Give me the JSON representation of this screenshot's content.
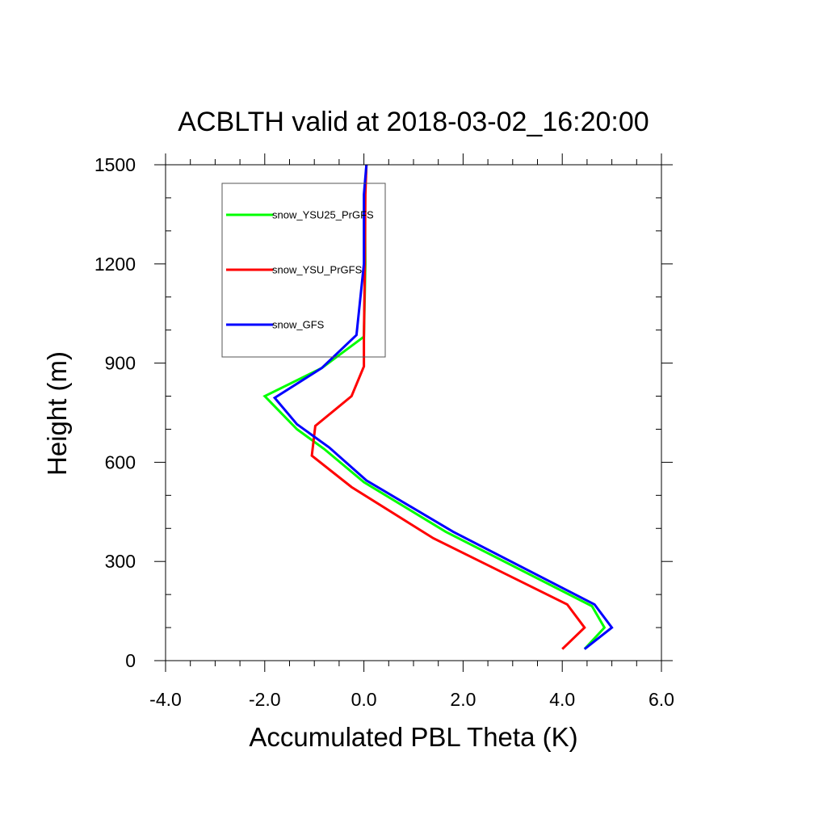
{
  "chart_data": {
    "type": "line",
    "title": "ACBLTH valid at 2018-03-02_16:20:00",
    "xlabel": "Accumulated PBL Theta (K)",
    "ylabel": "Height (m)",
    "xlim": [
      -4.0,
      6.0
    ],
    "ylim": [
      0,
      1500
    ],
    "xticks": [
      -4.0,
      -2.0,
      0.0,
      2.0,
      4.0,
      6.0
    ],
    "xtick_labels": [
      "-4.0",
      "-2.0",
      "0.0",
      "2.0",
      "4.0",
      "6.0"
    ],
    "yticks": [
      0,
      300,
      600,
      900,
      1200,
      1500
    ],
    "ytick_labels": [
      "0",
      "300",
      "600",
      "900",
      "1200",
      "1500"
    ],
    "grid": false,
    "legend_position": "top-left",
    "series": [
      {
        "name": "snow_YSU25_PrGFS",
        "color": "#00ff00",
        "points": [
          [
            4.45,
            35
          ],
          [
            4.85,
            100
          ],
          [
            4.6,
            165
          ],
          [
            1.65,
            390
          ],
          [
            0.0,
            540
          ],
          [
            -0.8,
            640
          ],
          [
            -1.35,
            700
          ],
          [
            -2.0,
            800
          ],
          [
            -0.85,
            885
          ],
          [
            0.0,
            980
          ],
          [
            0.03,
            1200
          ],
          [
            0.02,
            1410
          ],
          [
            0.05,
            1500
          ]
        ]
      },
      {
        "name": "snow_YSU_PrGFS",
        "color": "#ff0000",
        "points": [
          [
            4.0,
            35
          ],
          [
            4.45,
            100
          ],
          [
            4.1,
            170
          ],
          [
            1.4,
            370
          ],
          [
            -0.25,
            525
          ],
          [
            -1.05,
            620
          ],
          [
            -0.98,
            710
          ],
          [
            -0.25,
            800
          ],
          [
            0.0,
            890
          ],
          [
            0.0,
            980
          ],
          [
            0.02,
            1200
          ],
          [
            0.03,
            1410
          ],
          [
            0.05,
            1500
          ]
        ]
      },
      {
        "name": "snow_GFS",
        "color": "#0000ff",
        "points": [
          [
            4.45,
            35
          ],
          [
            5.0,
            100
          ],
          [
            4.65,
            170
          ],
          [
            1.8,
            390
          ],
          [
            0.05,
            545
          ],
          [
            -0.7,
            645
          ],
          [
            -1.35,
            715
          ],
          [
            -1.8,
            795
          ],
          [
            -0.85,
            885
          ],
          [
            -0.15,
            985
          ],
          [
            0.0,
            1200
          ],
          [
            0.0,
            1410
          ],
          [
            0.05,
            1500
          ]
        ]
      }
    ]
  }
}
